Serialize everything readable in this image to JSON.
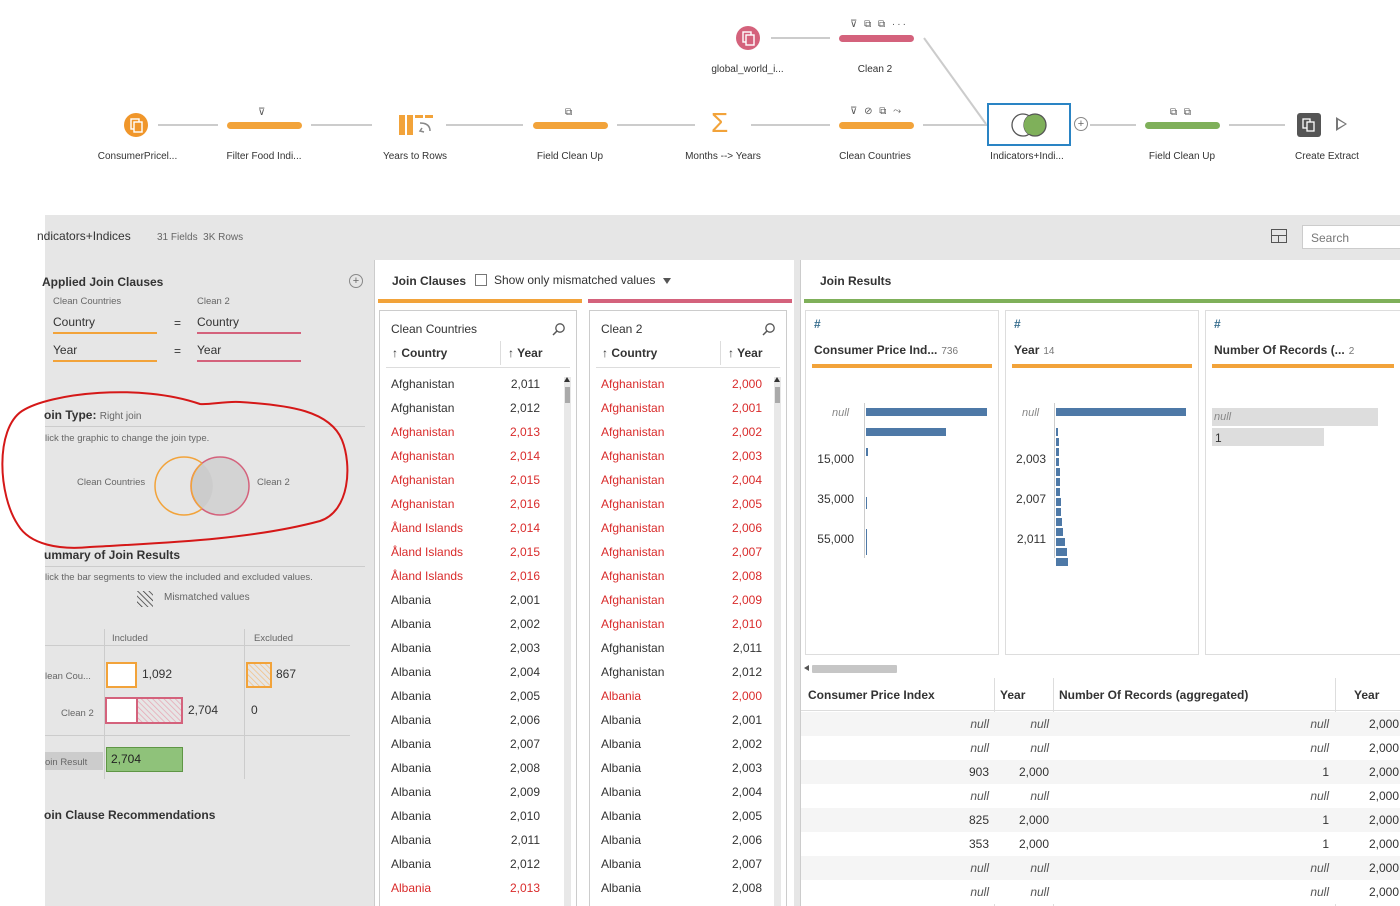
{
  "flow": {
    "nodes": [
      {
        "id": "input1",
        "label": "ConsumerPricel...",
        "kind": "input",
        "color": "#f0962a"
      },
      {
        "id": "filter",
        "label": "Filter Food Indi...",
        "kind": "clean",
        "color": "#f2a33a",
        "icons": "⊽"
      },
      {
        "id": "pivot",
        "label": "Years to Rows",
        "kind": "pivot",
        "color": "#f2a33a"
      },
      {
        "id": "fieldclean1",
        "label": "Field Clean Up",
        "kind": "clean",
        "color": "#f2a33a",
        "icons": "⧉"
      },
      {
        "id": "agg",
        "label": "Months --> Years",
        "kind": "aggregate",
        "color": "#f2a33a",
        "icons": "Σ"
      },
      {
        "id": "cleancountries",
        "label": "Clean Countries",
        "kind": "clean",
        "color": "#f2a33a",
        "icons": "⊽ ⊘ ⧉ ⤳"
      },
      {
        "id": "join",
        "label": "Indicators+Indi...",
        "kind": "join"
      },
      {
        "id": "fieldclean2",
        "label": "Field Clean Up",
        "kind": "clean",
        "color": "#7fb05a",
        "icons": "⧉ ⧉"
      },
      {
        "id": "output",
        "label": "Create Extract",
        "kind": "output"
      },
      {
        "id": "input2",
        "label": "global_world_i...",
        "kind": "input",
        "color": "#d4627c"
      },
      {
        "id": "clean2",
        "label": "Clean 2",
        "kind": "clean",
        "color": "#d4627c",
        "icons": "⊽ ⧉ ⧉ ···"
      }
    ]
  },
  "panel": {
    "title": "ndicators+Indices",
    "fields": "31 Fields",
    "rows": "3K Rows",
    "search_placeholder": "Search"
  },
  "applied": {
    "title": "Applied Join Clauses",
    "left_source": "Clean Countries",
    "right_source": "Clean 2",
    "clauses": [
      {
        "left": "Country",
        "op": "=",
        "right": "Country"
      },
      {
        "left": "Year",
        "op": "=",
        "right": "Year"
      }
    ]
  },
  "join_type": {
    "title": "oin Type:",
    "value": "Right join",
    "hint": "lick the graphic to change the join type.",
    "left_label": "Clean Countries",
    "right_label": "Clean 2"
  },
  "summary": {
    "title": "ummary of Join Results",
    "hint": "lick the bar segments to view the included and excluded values.",
    "mismatched": "Mismatched values",
    "included_head": "Included",
    "excluded_head": "Excluded",
    "rows": [
      {
        "label": "lean Cou...",
        "included": "1,092",
        "excluded": "867"
      },
      {
        "label": "Clean 2",
        "included": "2,704",
        "excluded": "0"
      }
    ],
    "result_label": "oin Result",
    "result_value": "2,704"
  },
  "recommendations": {
    "title": "oin Clause Recommendations"
  },
  "join_clauses": {
    "title": "Join Clauses",
    "mismatch_label": "Show only mismatched values",
    "left": {
      "title": "Clean Countries",
      "col1": "Country",
      "col2": "Year",
      "rows": [
        {
          "c": "Afghanistan",
          "y": "2,011",
          "m": false
        },
        {
          "c": "Afghanistan",
          "y": "2,012",
          "m": false
        },
        {
          "c": "Afghanistan",
          "y": "2,013",
          "m": true
        },
        {
          "c": "Afghanistan",
          "y": "2,014",
          "m": true
        },
        {
          "c": "Afghanistan",
          "y": "2,015",
          "m": true
        },
        {
          "c": "Afghanistan",
          "y": "2,016",
          "m": true
        },
        {
          "c": "Åland Islands",
          "y": "2,014",
          "m": true
        },
        {
          "c": "Åland Islands",
          "y": "2,015",
          "m": true
        },
        {
          "c": "Åland Islands",
          "y": "2,016",
          "m": true
        },
        {
          "c": "Albania",
          "y": "2,001",
          "m": false
        },
        {
          "c": "Albania",
          "y": "2,002",
          "m": false
        },
        {
          "c": "Albania",
          "y": "2,003",
          "m": false
        },
        {
          "c": "Albania",
          "y": "2,004",
          "m": false
        },
        {
          "c": "Albania",
          "y": "2,005",
          "m": false
        },
        {
          "c": "Albania",
          "y": "2,006",
          "m": false
        },
        {
          "c": "Albania",
          "y": "2,007",
          "m": false
        },
        {
          "c": "Albania",
          "y": "2,008",
          "m": false
        },
        {
          "c": "Albania",
          "y": "2,009",
          "m": false
        },
        {
          "c": "Albania",
          "y": "2,010",
          "m": false
        },
        {
          "c": "Albania",
          "y": "2,011",
          "m": false
        },
        {
          "c": "Albania",
          "y": "2,012",
          "m": false
        },
        {
          "c": "Albania",
          "y": "2,013",
          "m": true
        }
      ]
    },
    "right": {
      "title": "Clean 2",
      "col1": "Country",
      "col2": "Year",
      "rows": [
        {
          "c": "Afghanistan",
          "y": "2,000",
          "m": true
        },
        {
          "c": "Afghanistan",
          "y": "2,001",
          "m": true
        },
        {
          "c": "Afghanistan",
          "y": "2,002",
          "m": true
        },
        {
          "c": "Afghanistan",
          "y": "2,003",
          "m": true
        },
        {
          "c": "Afghanistan",
          "y": "2,004",
          "m": true
        },
        {
          "c": "Afghanistan",
          "y": "2,005",
          "m": true
        },
        {
          "c": "Afghanistan",
          "y": "2,006",
          "m": true
        },
        {
          "c": "Afghanistan",
          "y": "2,007",
          "m": true
        },
        {
          "c": "Afghanistan",
          "y": "2,008",
          "m": true
        },
        {
          "c": "Afghanistan",
          "y": "2,009",
          "m": true
        },
        {
          "c": "Afghanistan",
          "y": "2,010",
          "m": true
        },
        {
          "c": "Afghanistan",
          "y": "2,011",
          "m": false
        },
        {
          "c": "Afghanistan",
          "y": "2,012",
          "m": false
        },
        {
          "c": "Albania",
          "y": "2,000",
          "m": true
        },
        {
          "c": "Albania",
          "y": "2,001",
          "m": false
        },
        {
          "c": "Albania",
          "y": "2,002",
          "m": false
        },
        {
          "c": "Albania",
          "y": "2,003",
          "m": false
        },
        {
          "c": "Albania",
          "y": "2,004",
          "m": false
        },
        {
          "c": "Albania",
          "y": "2,005",
          "m": false
        },
        {
          "c": "Albania",
          "y": "2,006",
          "m": false
        },
        {
          "c": "Albania",
          "y": "2,007",
          "m": false
        },
        {
          "c": "Albania",
          "y": "2,008",
          "m": false
        }
      ]
    }
  },
  "results": {
    "title": "Join Results",
    "profiles": [
      {
        "name": "Consumer Price Ind...",
        "count": "736",
        "null": "null",
        "ticks": [
          "15,000",
          "35,000",
          "55,000"
        ]
      },
      {
        "name": "Year",
        "count": "14",
        "null": "null",
        "ticks": [
          "2,003",
          "2,007",
          "2,011"
        ]
      },
      {
        "name": "Number Of Records (...",
        "count": "2",
        "null": "null",
        "values": [
          "1"
        ]
      }
    ],
    "table": {
      "headers": [
        "Consumer Price Index",
        "Year",
        "Number Of Records (aggregated)",
        "Year"
      ],
      "rows": [
        [
          "null",
          "null",
          "null",
          "2,000"
        ],
        [
          "null",
          "null",
          "null",
          "2,000"
        ],
        [
          "903",
          "2,000",
          "1",
          "2,000"
        ],
        [
          "null",
          "null",
          "null",
          "2,000"
        ],
        [
          "825",
          "2,000",
          "1",
          "2,000"
        ],
        [
          "353",
          "2,000",
          "1",
          "2,000"
        ],
        [
          "null",
          "null",
          "null",
          "2,000"
        ],
        [
          "null",
          "null",
          "null",
          "2,000"
        ]
      ]
    }
  },
  "colors": {
    "orange": "#f2a33a",
    "pink": "#d4627c",
    "green": "#7fb05a",
    "mismatch": "#d92b2b",
    "bar_blue": "#4e79a7"
  }
}
